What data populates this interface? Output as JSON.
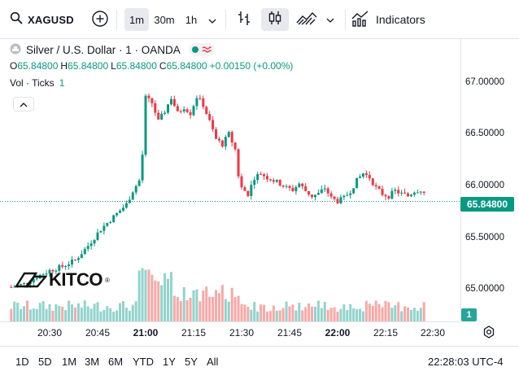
{
  "toolbar": {
    "symbol": "XAGUSD",
    "intervals": [
      "1m",
      "30m",
      "1h"
    ],
    "active_interval": "1m",
    "indicators_label": "Indicators"
  },
  "legend": {
    "title": "Silver / U.S. Dollar · 1 · OANDA",
    "o_label": "O",
    "o_value": "65.84800",
    "h_label": "H",
    "h_value": "65.84800",
    "l_label": "L",
    "l_value": "65.84800",
    "c_label": "C",
    "c_value": "65.84800",
    "change": "+0.00150 (+0.00%)",
    "vol_label": "Vol · Ticks",
    "vol_value": "1"
  },
  "price_axis": {
    "labels": [
      "67.00000",
      "66.50000",
      "66.00000",
      "65.50000",
      "65.00000"
    ],
    "last_price": "65.84800",
    "volume_tag": "1"
  },
  "time_axis": {
    "labels": [
      "20:30",
      "20:45",
      "21:00",
      "21:15",
      "21:30",
      "21:45",
      "22:00",
      "22:15",
      "22:30"
    ],
    "bold_labels": [
      "21:00",
      "22:00"
    ]
  },
  "logo": {
    "text": "KITCO",
    "reg": "®"
  },
  "ranges": [
    "1D",
    "5D",
    "1M",
    "3M",
    "6M",
    "YTD",
    "1Y",
    "5Y",
    "All"
  ],
  "clock": "22:28:03 UTC-4",
  "colors": {
    "up": "#089981",
    "down": "#f23645",
    "vol_up": "#92d3cc",
    "vol_down": "#f7a9a7",
    "last_line": "#089981"
  },
  "icons": {
    "search": "search-icon",
    "add": "plus-circle-icon",
    "chevron": "chevron-down-icon",
    "bars": "bar-chart-icon",
    "candles": "candlestick-icon",
    "line": "line-chart-icon",
    "indicators": "indicators-icon",
    "settings": "gear-icon",
    "collapse": "chevron-up-icon"
  }
}
